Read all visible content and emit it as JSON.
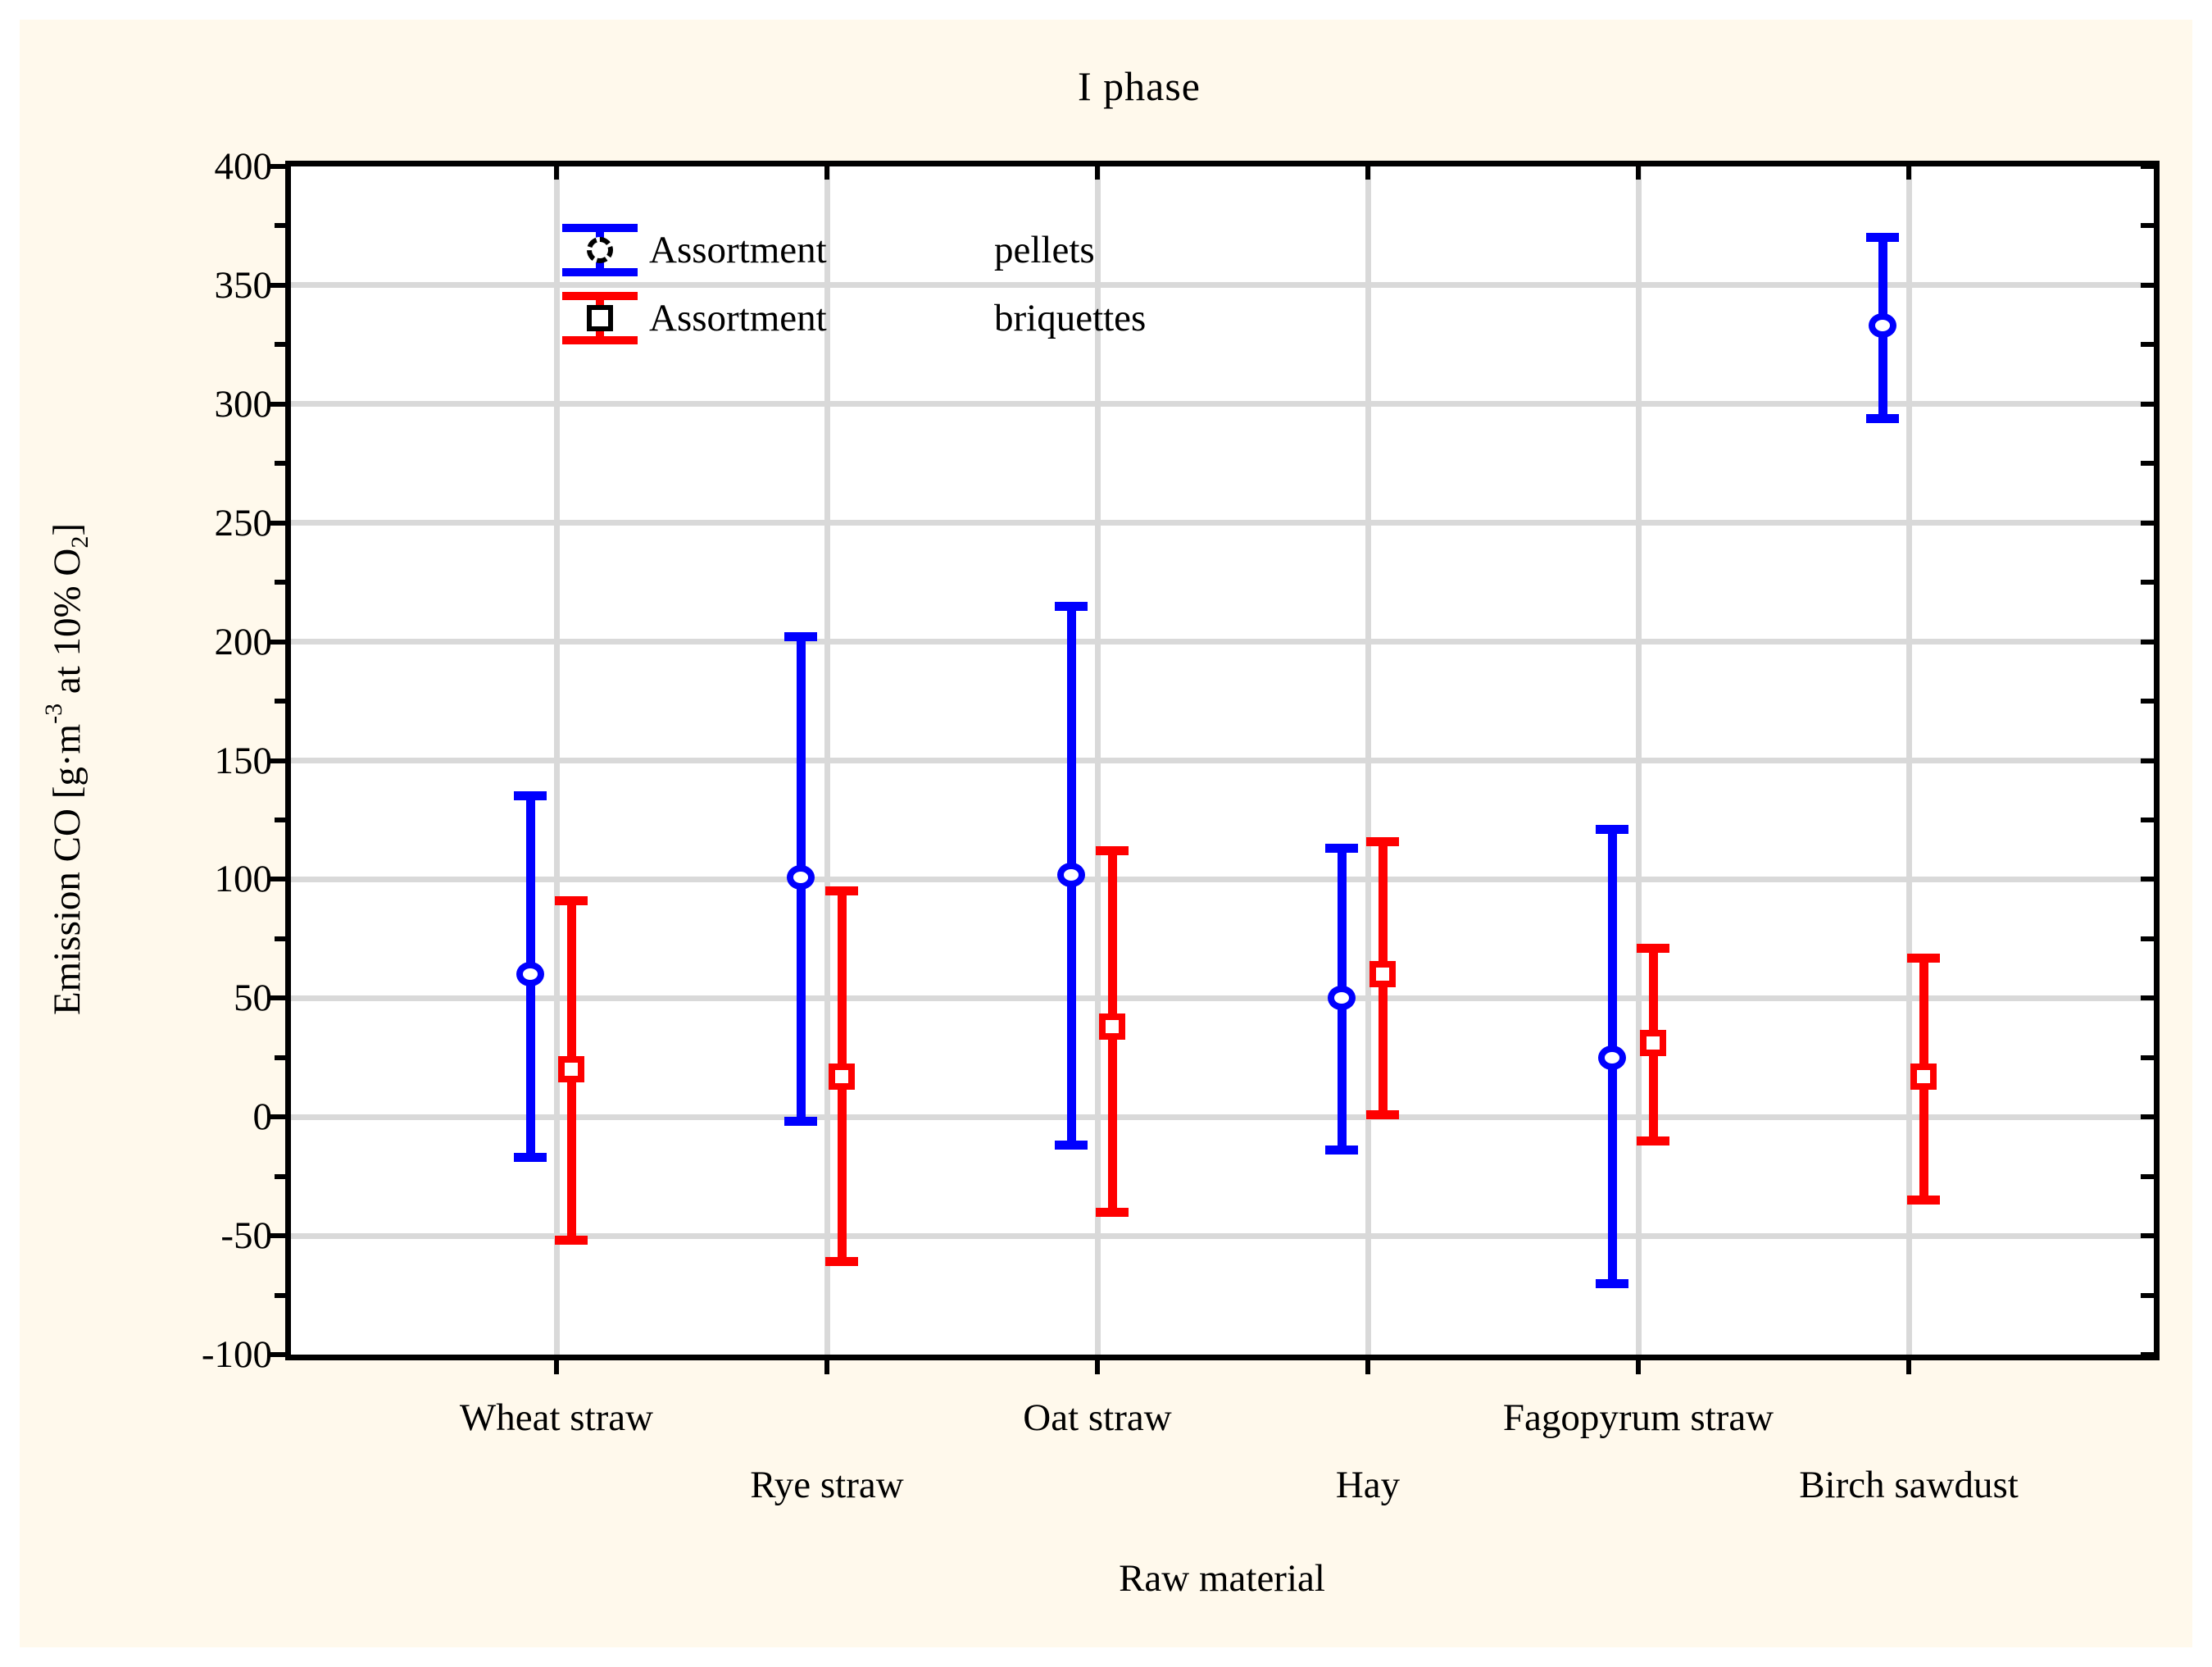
{
  "page": {
    "background": "#FFFFFF",
    "panel_background": "#FFF9EC"
  },
  "chart_data": {
    "type": "errorbar",
    "title": "I phase",
    "xlabel": "Raw material",
    "ylabel": "Emission CO [g·m⁻³ at 10% O₂]",
    "ylabel_parts": {
      "pre": "Emission CO [g·m",
      "sup": "-3",
      "mid": " at 10% O",
      "sub": "2",
      "post": "]"
    },
    "ylim": [
      -100,
      400
    ],
    "ytick_major": 50,
    "ytick_minor": 25,
    "grid": "major-horizontal-and-category-vertical",
    "legend_position": "top-left-inside",
    "categories": [
      "Wheat straw",
      "Rye straw",
      "Oat straw",
      "Hay",
      "Fagopyrum straw",
      "Birch sawdust"
    ],
    "category_label_row": [
      0,
      1,
      0,
      1,
      0,
      1
    ],
    "series": [
      {
        "name": "Assortment pellets",
        "legend_label": "Assortment",
        "legend_value": "pellets",
        "marker": "circle",
        "color": "#0000FE",
        "mean": [
          60,
          101,
          102,
          50,
          25,
          333
        ],
        "low": [
          -17,
          -2,
          -12,
          -14,
          -70,
          294
        ],
        "high": [
          135,
          202,
          215,
          113,
          121,
          370
        ]
      },
      {
        "name": "Assortment briquettes",
        "legend_label": "Assortment",
        "legend_value": "briquettes",
        "marker": "square",
        "color": "#FE0000",
        "mean": [
          20,
          17,
          38,
          60,
          31,
          17
        ],
        "low": [
          -52,
          -61,
          -40,
          1,
          -10,
          -35
        ],
        "high": [
          91,
          95,
          112,
          116,
          71,
          67
        ]
      }
    ],
    "colors": {
      "grid": "#D9D9D9",
      "frame": "#000000",
      "text": "#000000",
      "legend_marker_outline": "#000000"
    }
  }
}
